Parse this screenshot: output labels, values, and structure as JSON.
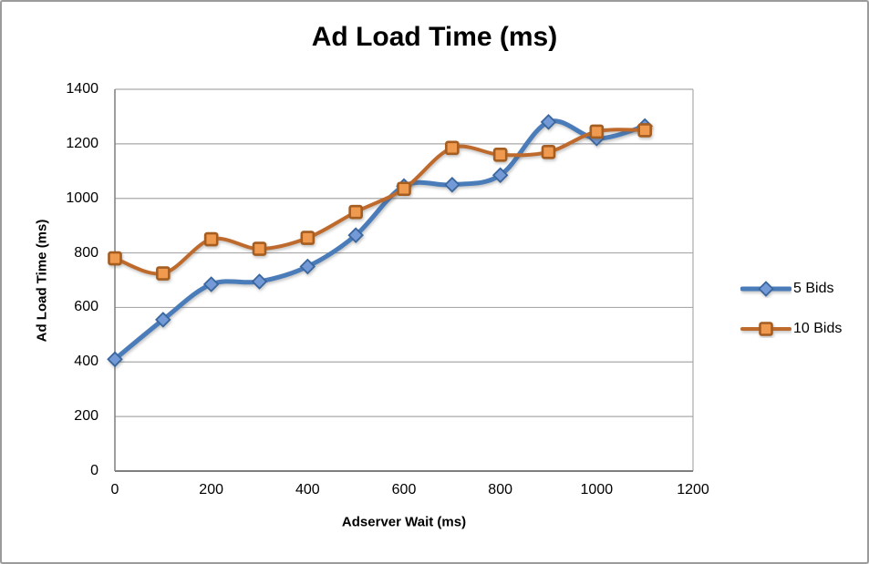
{
  "chart_data": {
    "type": "line",
    "title": "Ad Load Time (ms)",
    "xlabel": "Adserver Wait (ms)",
    "ylabel": "Ad Load Time (ms)",
    "x": [
      0,
      100,
      200,
      300,
      400,
      500,
      600,
      700,
      800,
      900,
      1000,
      1100
    ],
    "series": [
      {
        "name": "5 Bids",
        "marker": "diamond",
        "line_color": "#4a7cba",
        "marker_fill": "#7399d6",
        "marker_stroke": "#3a669e",
        "line_width": 5,
        "values": [
          410,
          555,
          685,
          695,
          750,
          865,
          1045,
          1050,
          1085,
          1280,
          1220,
          1265
        ]
      },
      {
        "name": "10 Bids",
        "marker": "square",
        "line_color": "#bf6a2d",
        "marker_fill": "#f09a50",
        "marker_stroke": "#a55d20",
        "line_width": 4,
        "values": [
          780,
          725,
          850,
          815,
          855,
          950,
          1035,
          1185,
          1160,
          1170,
          1245,
          1250
        ]
      }
    ],
    "x_ticks": [
      0,
      200,
      400,
      600,
      800,
      1000,
      1200
    ],
    "y_ticks": [
      0,
      200,
      400,
      600,
      800,
      1000,
      1200,
      1400
    ],
    "xlim": [
      0,
      1200
    ],
    "ylim": [
      0,
      1400
    ],
    "grid": true,
    "smooth": true,
    "legend_position": "right",
    "colors": {
      "gridline": "#a9a9a9",
      "axis": "#7f7f7f",
      "plot_border": "#a9a9a9",
      "text": "#000000"
    }
  }
}
